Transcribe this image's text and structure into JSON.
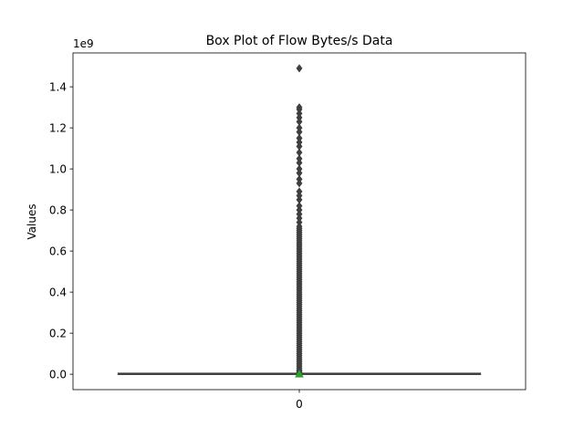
{
  "chart_data": {
    "type": "box",
    "title": "Box Plot of Flow Bytes/s Data",
    "xlabel": "",
    "ylabel": "Values",
    "y_offset_label": "1e9",
    "y_scale": 1000000000,
    "categories": [
      "0"
    ],
    "yticks": [
      0.0,
      0.2,
      0.4,
      0.6,
      0.8,
      1.0,
      1.2,
      1.4
    ],
    "ytick_labels": [
      "0.0",
      "0.2",
      "0.4",
      "0.6",
      "0.8",
      "1.0",
      "1.2",
      "1.4"
    ],
    "ylim": [
      -0.075,
      1.565
    ],
    "xlim": [
      -0.5,
      0.5
    ],
    "box": {
      "category": "0",
      "min": 0.0,
      "q1": 0.0,
      "median": 0.0,
      "q3": 0.002,
      "max": 0.004,
      "mean": 0.001,
      "width": 0.8
    },
    "outliers": [
      1.49,
      1.3,
      1.29,
      1.27,
      1.25,
      1.23,
      1.2,
      1.18,
      1.15,
      1.13,
      1.11,
      1.08,
      1.05,
      1.03,
      1.0,
      0.98,
      0.95,
      0.93,
      0.89,
      0.87,
      0.85,
      0.82,
      0.8,
      0.78,
      0.76,
      0.74,
      0.72,
      0.71,
      0.7,
      0.69,
      0.68,
      0.67,
      0.66,
      0.65,
      0.64,
      0.63,
      0.62,
      0.61,
      0.6,
      0.59,
      0.58,
      0.57,
      0.56,
      0.55,
      0.54,
      0.53,
      0.52,
      0.51,
      0.5,
      0.49,
      0.48,
      0.47,
      0.46,
      0.45,
      0.44,
      0.43,
      0.42,
      0.41,
      0.4,
      0.39,
      0.38,
      0.37,
      0.36,
      0.35,
      0.34,
      0.33,
      0.32,
      0.31,
      0.3,
      0.29,
      0.28,
      0.27,
      0.26,
      0.25,
      0.24,
      0.23,
      0.22,
      0.21,
      0.2,
      0.19,
      0.18,
      0.17,
      0.16,
      0.15,
      0.14,
      0.13,
      0.12,
      0.11,
      0.1,
      0.09,
      0.08,
      0.07,
      0.06,
      0.05,
      0.04,
      0.03,
      0.02,
      0.015,
      0.01
    ],
    "grid": false,
    "legend": "none",
    "colors": {
      "box_edge": "#3f3f3f",
      "outlier": "#3f3f3f",
      "mean_marker": "#2ca02c",
      "axes": "#000000",
      "background": "#ffffff"
    }
  }
}
